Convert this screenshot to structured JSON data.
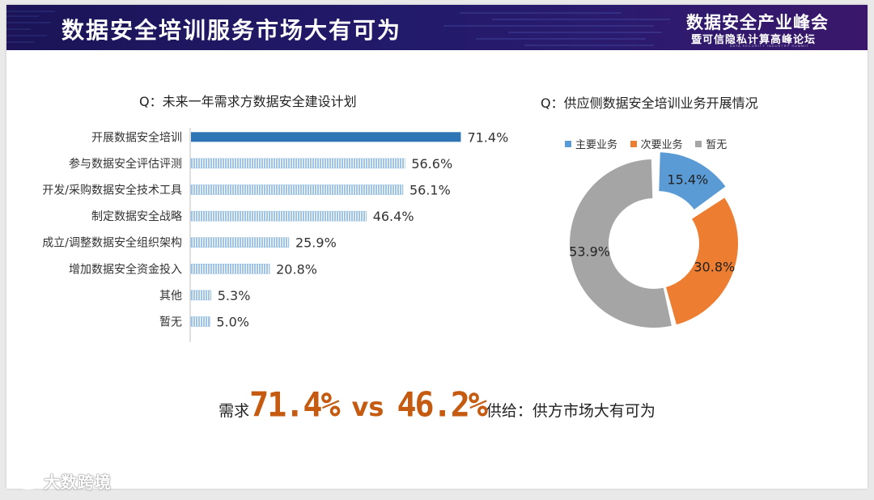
{
  "header": {
    "title": "数据安全培训服务市场大有可为",
    "summit_title": "数据安全产业峰会",
    "summit_subtitle": "暨可信隐私计算高峰论坛",
    "summit_tiny": "DATA SECURITY INDUSTRY SUMMIT"
  },
  "colors": {
    "banner_dark": "#1c1457",
    "bar_highlight": "#2e75b6",
    "bar_normal": "#9dc3e6",
    "primary": "#5b9bd5",
    "secondary": "#ed7d31",
    "none": "#a5a5a5",
    "accent_text": "#c55a11"
  },
  "chart_data": [
    {
      "type": "bar",
      "orientation": "horizontal",
      "title": "Q：未来一年需求方数据安全建设计划",
      "categories": [
        "开展数据安全培训",
        "参与数据安全评估评测",
        "开发/采购数据安全技术工具",
        "制定数据安全战略",
        "成立/调整数据安全组织架构",
        "增加数据安全资金投入",
        "其他",
        "暂无"
      ],
      "values": [
        71.4,
        56.6,
        56.1,
        46.4,
        25.9,
        20.8,
        5.3,
        5.0
      ],
      "labels": [
        "71.4%",
        "56.6%",
        "56.1%",
        "46.4%",
        "25.9%",
        "20.8%",
        "5.3%",
        "5.0%"
      ],
      "xlim": [
        0,
        100
      ],
      "highlight_index": 0,
      "grid": false
    },
    {
      "type": "pie",
      "style": "donut",
      "title": "Q：供应侧数据安全培训业务开展情况",
      "categories": [
        "主要业务",
        "次要业务",
        "暂无"
      ],
      "values": [
        15.4,
        30.8,
        53.9
      ],
      "labels": [
        "15.4%",
        "30.8%",
        "53.9%"
      ],
      "legend": "top"
    }
  ],
  "summary": {
    "demand_label": "需求",
    "demand_value": "71.4%",
    "vs": "vs",
    "supply_value": "46.2%",
    "supply_label": "供给：供方市场大有可为"
  },
  "watermark": {
    "text": "大数跨境"
  }
}
